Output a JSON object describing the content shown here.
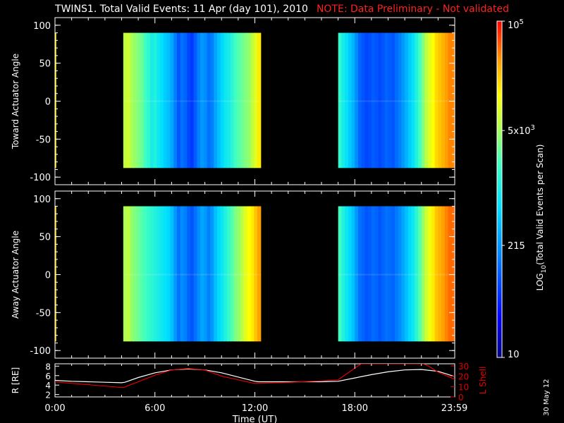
{
  "title": "TWINS1. Total Valid Events: 11 Apr (day 101), 2010",
  "note": "NOTE: Data Preliminary - Not validated",
  "date_stamp": "30 May 12",
  "colors": {
    "background": "#000000",
    "axes": "#ffffff",
    "note": "#ff2020",
    "r_line": "#ffffff",
    "lshell_line": "#e00000",
    "colormap_low": "#000080",
    "colormap_high": "#ff0000"
  },
  "chart_data": [
    {
      "type": "heatmap",
      "panel": "toward",
      "ylabel": "Toward Actuator Angle",
      "ylim": [
        -110,
        110
      ],
      "y_ticks": [
        -100,
        -50,
        0,
        50,
        100
      ],
      "x_range_hours": [
        0,
        24
      ],
      "y_data_range": [
        -88,
        90
      ],
      "segments": [
        {
          "start_hour": 0.0,
          "end_hour": 0.05,
          "levels": [
            0.8
          ]
        },
        {
          "start_hour": 4.1,
          "end_hour": 12.35,
          "levels": [
            0.7,
            0.72,
            0.68,
            0.66,
            0.64,
            0.62,
            0.58,
            0.55,
            0.5,
            0.52,
            0.48,
            0.45,
            0.42,
            0.4,
            0.36,
            0.3,
            0.24,
            0.28,
            0.26,
            0.22,
            0.2,
            0.25,
            0.3,
            0.34,
            0.32,
            0.28,
            0.3,
            0.36,
            0.4,
            0.44,
            0.48,
            0.5,
            0.54,
            0.58,
            0.6,
            0.62,
            0.64,
            0.66,
            0.7,
            0.74,
            0.8
          ]
        },
        {
          "start_hour": 17.0,
          "end_hour": 24.0,
          "levels": [
            0.55,
            0.5,
            0.46,
            0.42,
            0.38,
            0.32,
            0.26,
            0.24,
            0.22,
            0.23,
            0.25,
            0.24,
            0.22,
            0.24,
            0.26,
            0.25,
            0.24,
            0.27,
            0.3,
            0.34,
            0.38,
            0.42,
            0.46,
            0.52,
            0.58,
            0.64,
            0.7,
            0.74,
            0.78,
            0.82,
            0.84,
            0.86,
            0.88,
            0.9,
            0.9
          ]
        }
      ]
    },
    {
      "type": "heatmap",
      "panel": "away",
      "ylabel": "Away Actuator Angle",
      "ylim": [
        -110,
        110
      ],
      "y_ticks": [
        -100,
        -50,
        0,
        50,
        100
      ],
      "x_range_hours": [
        0,
        24
      ],
      "y_data_range": [
        -88,
        90
      ],
      "segments": [
        {
          "start_hour": 0.0,
          "end_hour": 0.05,
          "levels": [
            0.82
          ]
        },
        {
          "start_hour": 4.1,
          "end_hour": 12.35,
          "levels": [
            0.68,
            0.7,
            0.66,
            0.64,
            0.62,
            0.6,
            0.58,
            0.56,
            0.54,
            0.52,
            0.5,
            0.48,
            0.46,
            0.44,
            0.4,
            0.34,
            0.28,
            0.32,
            0.3,
            0.26,
            0.24,
            0.28,
            0.32,
            0.36,
            0.34,
            0.3,
            0.34,
            0.4,
            0.44,
            0.48,
            0.52,
            0.56,
            0.6,
            0.64,
            0.66,
            0.7,
            0.74,
            0.78,
            0.8,
            0.84,
            0.88
          ]
        },
        {
          "start_hour": 17.0,
          "end_hour": 24.0,
          "levels": [
            0.58,
            0.52,
            0.48,
            0.44,
            0.4,
            0.34,
            0.28,
            0.26,
            0.24,
            0.25,
            0.27,
            0.26,
            0.24,
            0.26,
            0.28,
            0.27,
            0.26,
            0.29,
            0.32,
            0.36,
            0.4,
            0.44,
            0.48,
            0.54,
            0.6,
            0.66,
            0.72,
            0.76,
            0.8,
            0.84,
            0.86,
            0.88,
            0.9,
            0.92,
            0.92
          ]
        }
      ]
    },
    {
      "type": "line",
      "panel": "orbit",
      "xlabel": "Time (UT)",
      "x_tick_labels": [
        "0:00",
        "6:00",
        "12:00",
        "18:00",
        "23:59"
      ],
      "x_tick_hours": [
        0,
        6,
        12,
        18,
        23.98
      ],
      "y_left_label": "R [RE]",
      "y_left_ticks": [
        2,
        4,
        6,
        8
      ],
      "y_left_range": [
        1.5,
        8.5
      ],
      "y_right_label": "L Shell",
      "y_right_ticks": [
        0,
        10,
        20,
        30
      ],
      "y_right_range": [
        0,
        32
      ],
      "series": [
        {
          "axis": "left",
          "x": [
            0,
            1,
            2,
            3,
            4,
            4.2,
            5,
            6,
            7,
            8,
            9,
            10,
            11,
            12,
            12.2,
            14,
            16,
            17,
            18,
            19,
            20,
            21,
            22,
            23,
            24
          ],
          "y": [
            5.0,
            4.8,
            4.7,
            4.6,
            4.5,
            4.6,
            5.6,
            6.6,
            7.2,
            7.4,
            7.2,
            6.6,
            5.7,
            4.8,
            4.7,
            4.7,
            4.7,
            4.8,
            5.5,
            6.2,
            6.8,
            7.2,
            7.3,
            6.9,
            5.8
          ]
        },
        {
          "axis": "right",
          "x": [
            0,
            4.1,
            6,
            7,
            8,
            9,
            10,
            12,
            14,
            16,
            17,
            18.2,
            18.4,
            22.1,
            22.4,
            23,
            24
          ],
          "y": [
            14.5,
            9,
            21,
            26,
            27.5,
            26,
            20,
            13,
            14,
            15.5,
            16.5,
            30,
            32,
            32,
            30,
            24,
            17
          ]
        }
      ]
    },
    {
      "type": "heatmap",
      "panel": "colorbar",
      "label": "LOG10(Total Valid Events per Scan)",
      "label_main": "LOG",
      "label_sub": "10",
      "label_rest": "(Total Valid Events per Scan)",
      "tick_labels": [
        {
          "value": 10,
          "base": "10",
          "exp": ""
        },
        {
          "value": 215,
          "base": "215",
          "exp": ""
        },
        {
          "value": 5000,
          "base": "5x10",
          "exp": "3"
        },
        {
          "value": 100000,
          "base": "10",
          "exp": "5"
        }
      ],
      "range": [
        10,
        100000
      ]
    }
  ]
}
